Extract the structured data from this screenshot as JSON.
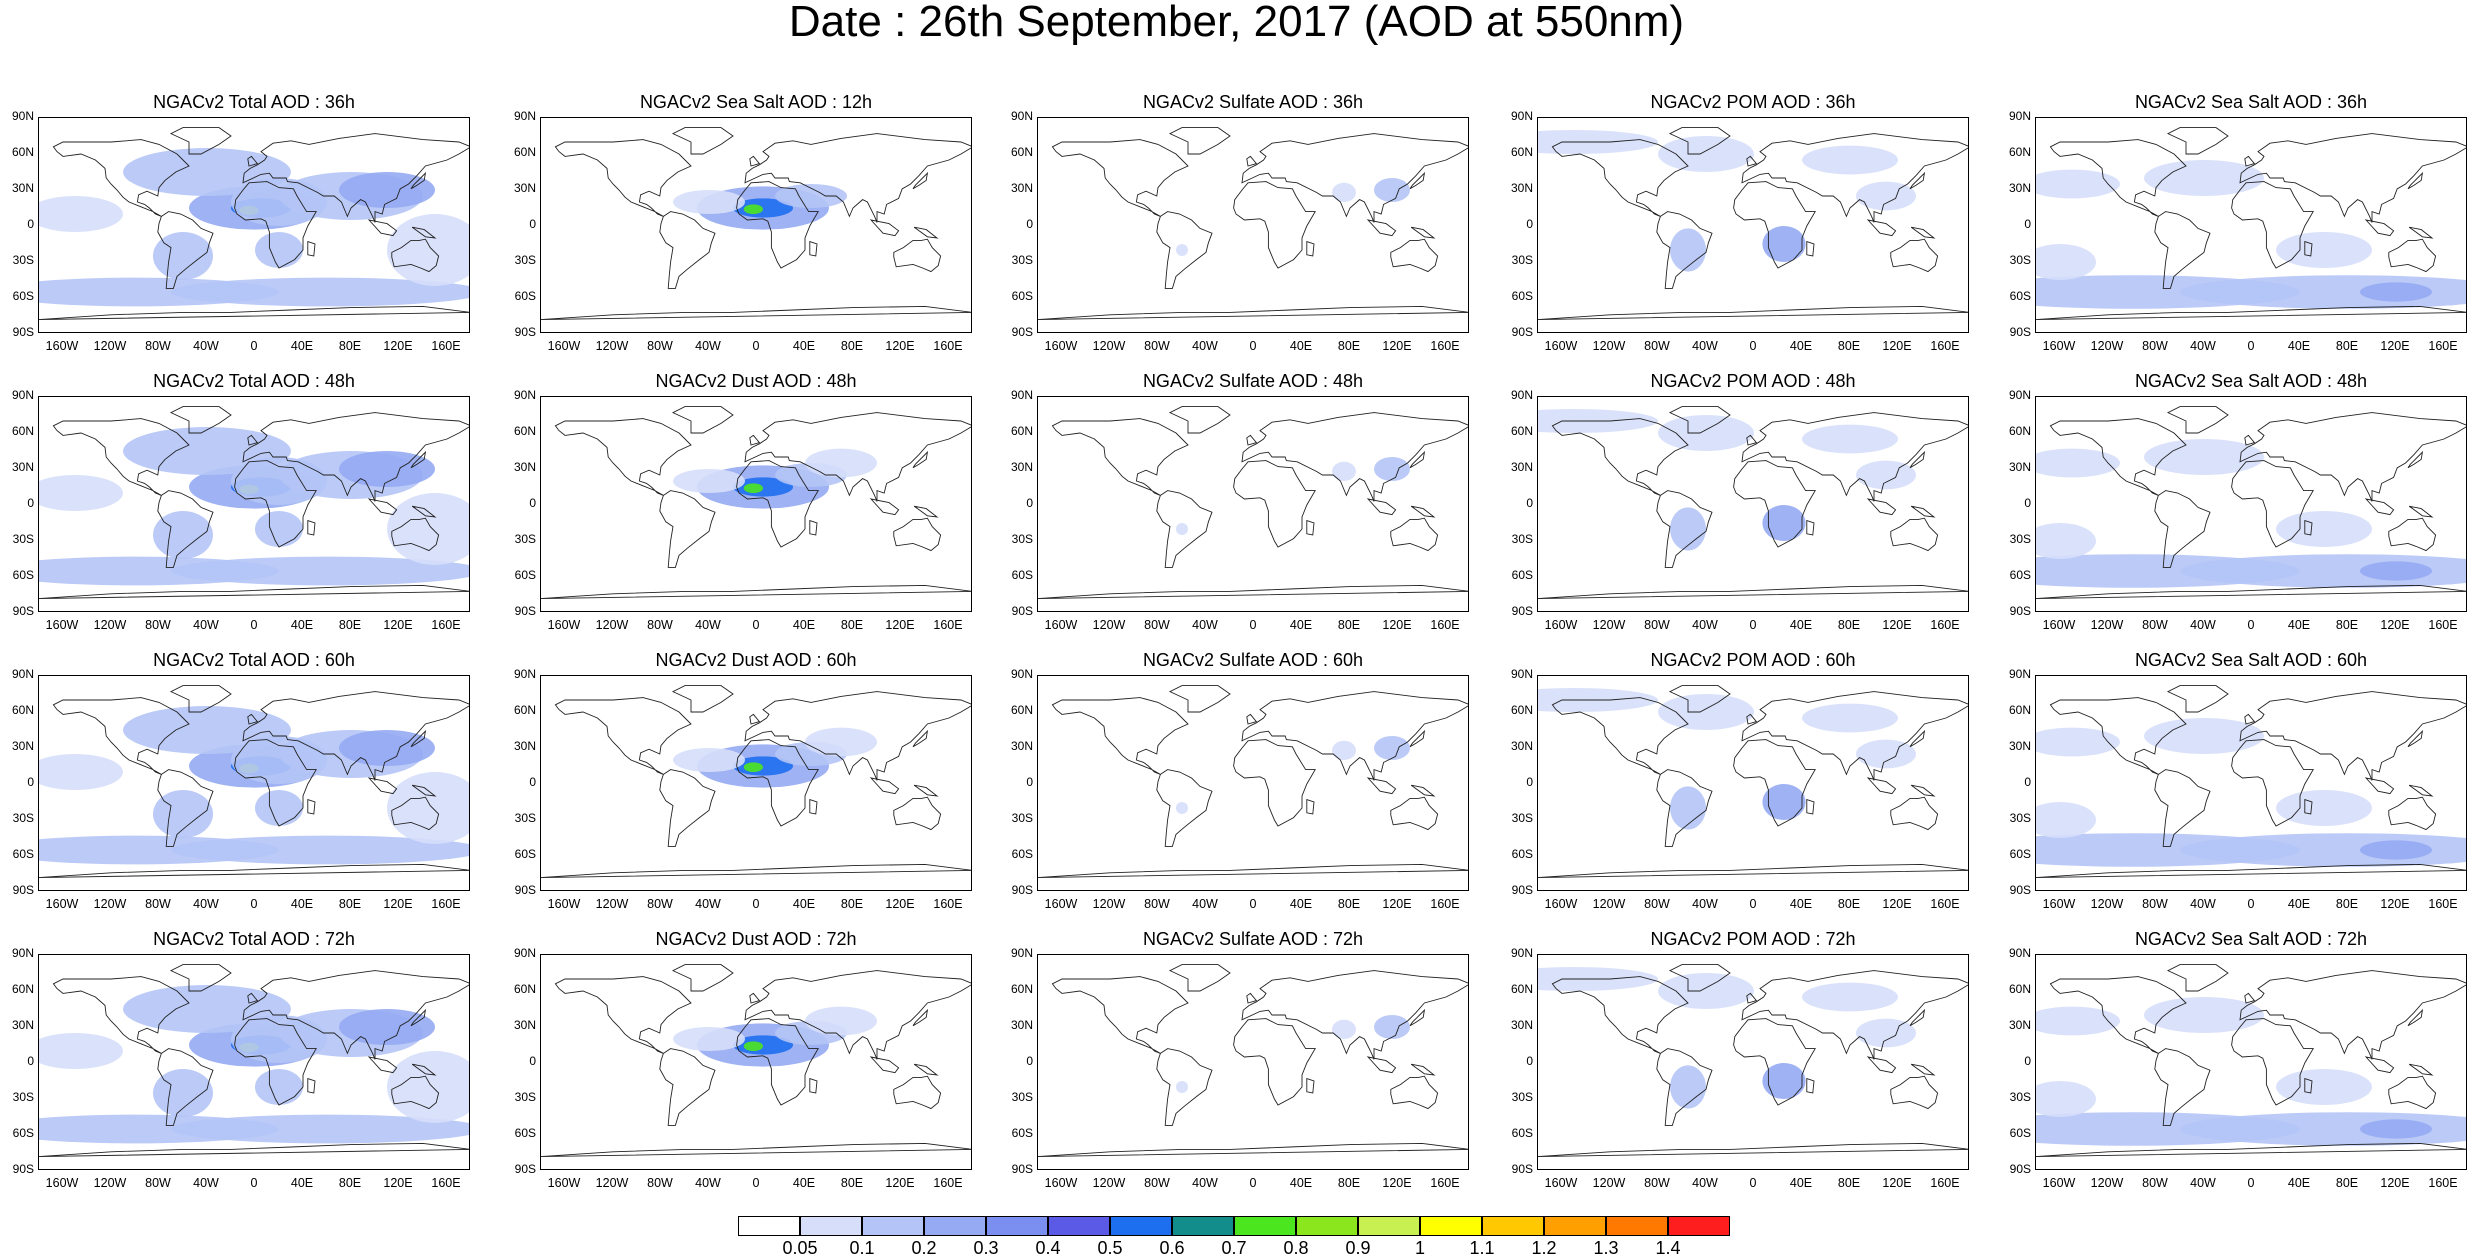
{
  "title": "Date : 26th September, 2017 (AOD at 550nm)",
  "lat_labels": [
    "90N",
    "60N",
    "30N",
    "0",
    "30S",
    "60S",
    "90S"
  ],
  "lon_labels": [
    "160W",
    "120W",
    "80W",
    "40W",
    "0",
    "40E",
    "80E",
    "120E",
    "160E"
  ],
  "panels": [
    {
      "title": "NGACv2 Total AOD : 36h",
      "kind": "total"
    },
    {
      "title": "NGACv2 Sea Salt  AOD : 12h",
      "kind": "dustlight"
    },
    {
      "title": "NGACv2 Sulfate AOD : 36h",
      "kind": "sulfate"
    },
    {
      "title": "NGACv2 POM AOD : 36h",
      "kind": "pom"
    },
    {
      "title": "NGACv2 Sea Salt AOD : 36h",
      "kind": "seasalt"
    },
    {
      "title": "NGACv2 Total AOD : 48h",
      "kind": "total"
    },
    {
      "title": "NGACv2 Dust AOD : 48h",
      "kind": "dust"
    },
    {
      "title": "NGACv2 Sulfate AOD : 48h",
      "kind": "sulfate"
    },
    {
      "title": "NGACv2 POM AOD : 48h",
      "kind": "pom"
    },
    {
      "title": "NGACv2 Sea Salt AOD : 48h",
      "kind": "seasalt"
    },
    {
      "title": "NGACv2 Total AOD : 60h",
      "kind": "total"
    },
    {
      "title": "NGACv2 Dust AOD : 60h",
      "kind": "dust"
    },
    {
      "title": "NGACv2 Sulfate AOD : 60h",
      "kind": "sulfate"
    },
    {
      "title": "NGACv2 POM AOD : 60h",
      "kind": "pom"
    },
    {
      "title": "NGACv2 Sea Salt AOD : 60h",
      "kind": "seasalt"
    },
    {
      "title": "NGACv2 Total AOD : 72h",
      "kind": "total"
    },
    {
      "title": "NGACv2 Dust AOD : 72h",
      "kind": "dust"
    },
    {
      "title": "NGACv2 Sulfate AOD : 72h",
      "kind": "sulfate"
    },
    {
      "title": "NGACv2 POM AOD : 72h",
      "kind": "pom"
    },
    {
      "title": "NGACv2 Sea Salt  AOD : 72h",
      "kind": "seasalt"
    }
  ],
  "colorbar": {
    "labels": [
      "0.05",
      "0.1",
      "0.2",
      "0.3",
      "0.4",
      "0.5",
      "0.6",
      "0.7",
      "0.8",
      "0.9",
      "1",
      "1.1",
      "1.2",
      "1.3",
      "1.4"
    ],
    "colors": [
      "#ffffff",
      "#d6defa",
      "#b4c4f6",
      "#95aaf2",
      "#7a8ff0",
      "#5a5ae6",
      "#1e6ef0",
      "#138c8c",
      "#4ce61e",
      "#8ce61e",
      "#c8f050",
      "#ffff00",
      "#ffc800",
      "#ffa000",
      "#ff7800",
      "#ff1e1e"
    ]
  }
}
